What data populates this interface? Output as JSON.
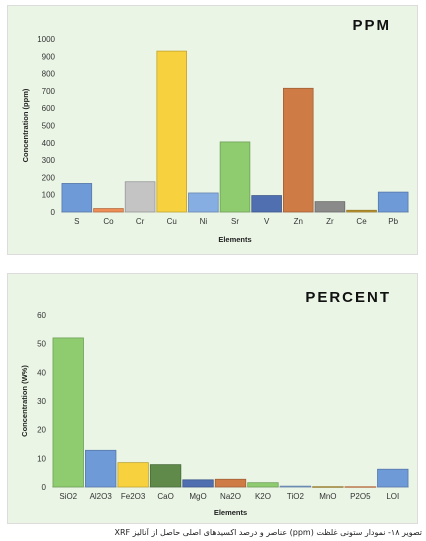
{
  "chart_data": [
    {
      "type": "bar",
      "title": "PPM",
      "xlabel": "Elements",
      "ylabel": "Concentration (ppm)",
      "ylim": [
        0,
        1000
      ],
      "yticks": [
        0,
        100,
        200,
        300,
        400,
        500,
        600,
        700,
        800,
        900,
        1000
      ],
      "grid": false,
      "categories": [
        "S",
        "Co",
        "Cr",
        "Cu",
        "Ni",
        "Sr",
        "V",
        "Zn",
        "Zr",
        "Ce",
        "Pb"
      ],
      "values": [
        165,
        20,
        175,
        930,
        110,
        405,
        95,
        715,
        60,
        10,
        115
      ],
      "colors": [
        "#6f9ad8",
        "#ed8d55",
        "#c4c4c4",
        "#f7d23e",
        "#86aee2",
        "#8fcc70",
        "#4f6fb0",
        "#cf7b45",
        "#8a8a8a",
        "#bf9a32",
        "#6f9ad8"
      ]
    },
    {
      "type": "bar",
      "title": "PERCENT",
      "xlabel": "Elements",
      "ylabel": "Concentration (W%)",
      "ylim": [
        0,
        60
      ],
      "yticks": [
        0,
        10,
        20,
        30,
        40,
        50,
        60
      ],
      "grid": false,
      "categories": [
        "SiO2",
        "Al2O3",
        "Fe2O3",
        "CaO",
        "MgO",
        "Na2O",
        "K2O",
        "TiO2",
        "MnO",
        "P2O5",
        "LOI"
      ],
      "values": [
        52,
        12.8,
        8.5,
        7.8,
        2.5,
        2.7,
        1.5,
        0.3,
        0.1,
        0.1,
        6.2
      ],
      "colors": [
        "#8fcc70",
        "#6f9ad8",
        "#f7d23e",
        "#5f8a4a",
        "#4f6fb0",
        "#cf7b45",
        "#8fcc70",
        "#86aee2",
        "#bf9a32",
        "#ed8d55",
        "#6f9ad8"
      ]
    }
  ],
  "caption": "تصویر ۱۸- نمودار ستونی غلظت (ppm) عناصر و درصد اکسیدهای اصلی حاصل از آنالیز XRF"
}
